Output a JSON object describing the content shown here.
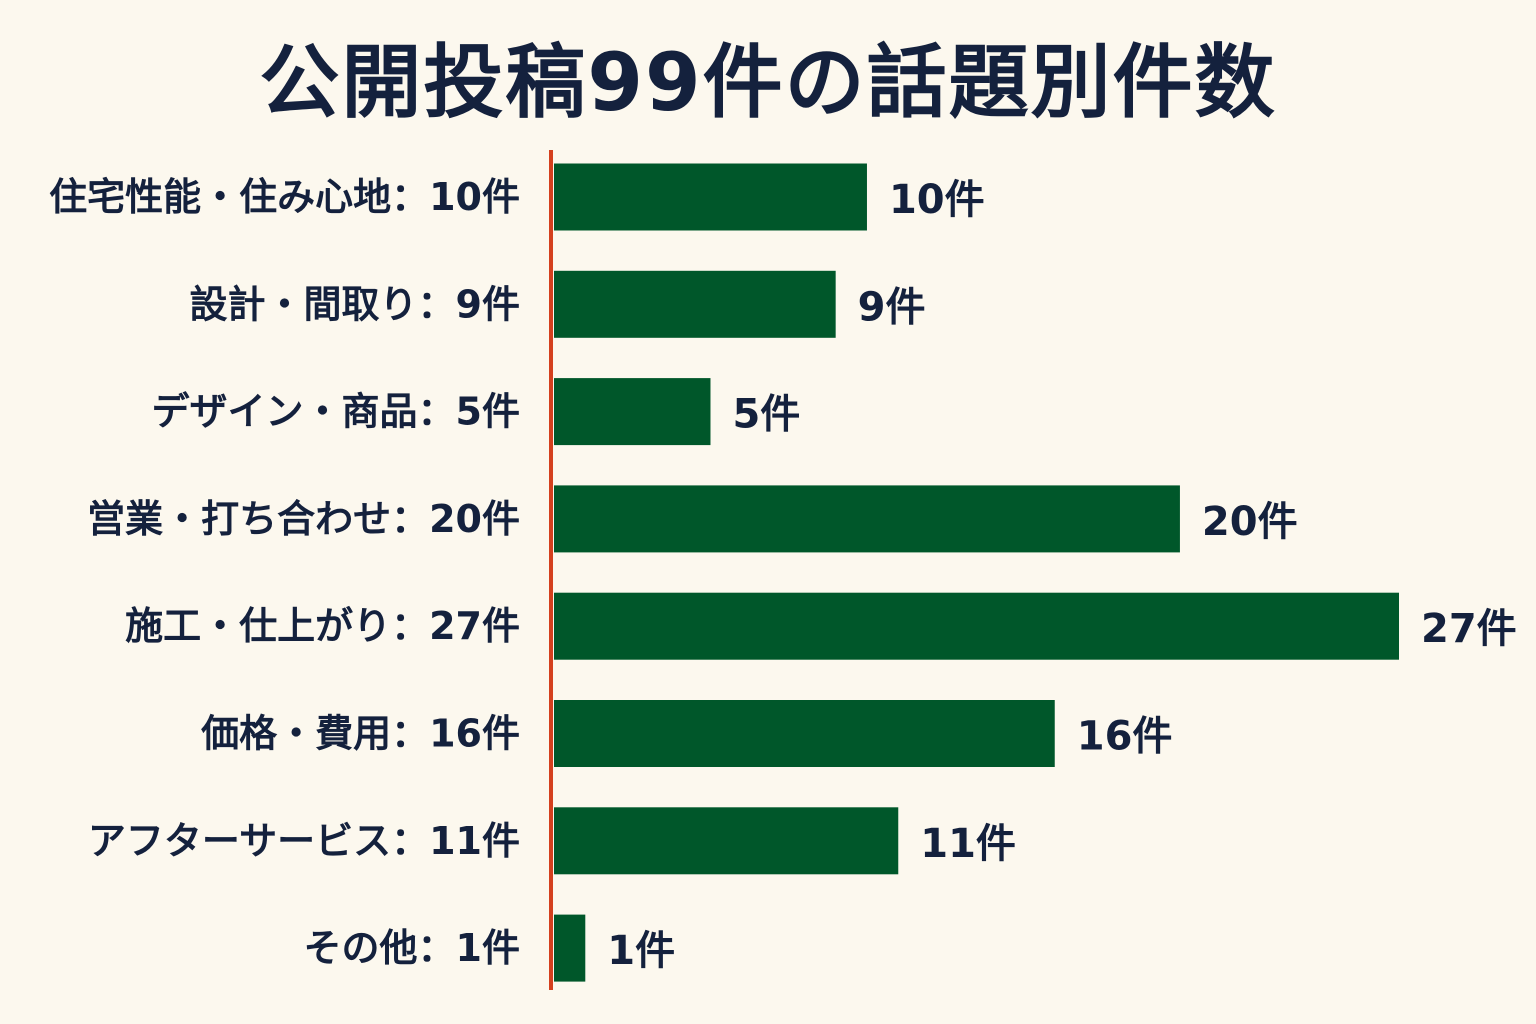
{
  "chart_data": {
    "type": "bar",
    "orientation": "horizontal",
    "title": "公開投稿99件の話題別件数",
    "categories": [
      "住宅性能・住み心地",
      "設計・間取り",
      "デザイン・商品",
      "営業・打ち合わせ",
      "施工・仕上がり",
      "価格・費用",
      "アフターサービス",
      "その他"
    ],
    "values": [
      10,
      9,
      5,
      20,
      27,
      16,
      11,
      1
    ],
    "category_labels": [
      "住宅性能・住み心地：10件",
      "設計・間取り：9件",
      "デザイン・商品：5件",
      "営業・打ち合わせ：20件",
      "施工・仕上がり：27件",
      "価格・費用：16件",
      "アフターサービス：11件",
      "その他：1件"
    ],
    "value_labels": [
      "10件",
      "9件",
      "5件",
      "20件",
      "27件",
      "16件",
      "11件",
      "1件"
    ],
    "xlim": [
      0,
      27
    ],
    "grid": false,
    "legend": "none",
    "colors": {
      "bar": "#00572a",
      "axis": "#d4401e",
      "text": "#14213d",
      "background": "#fcf8ee"
    }
  }
}
